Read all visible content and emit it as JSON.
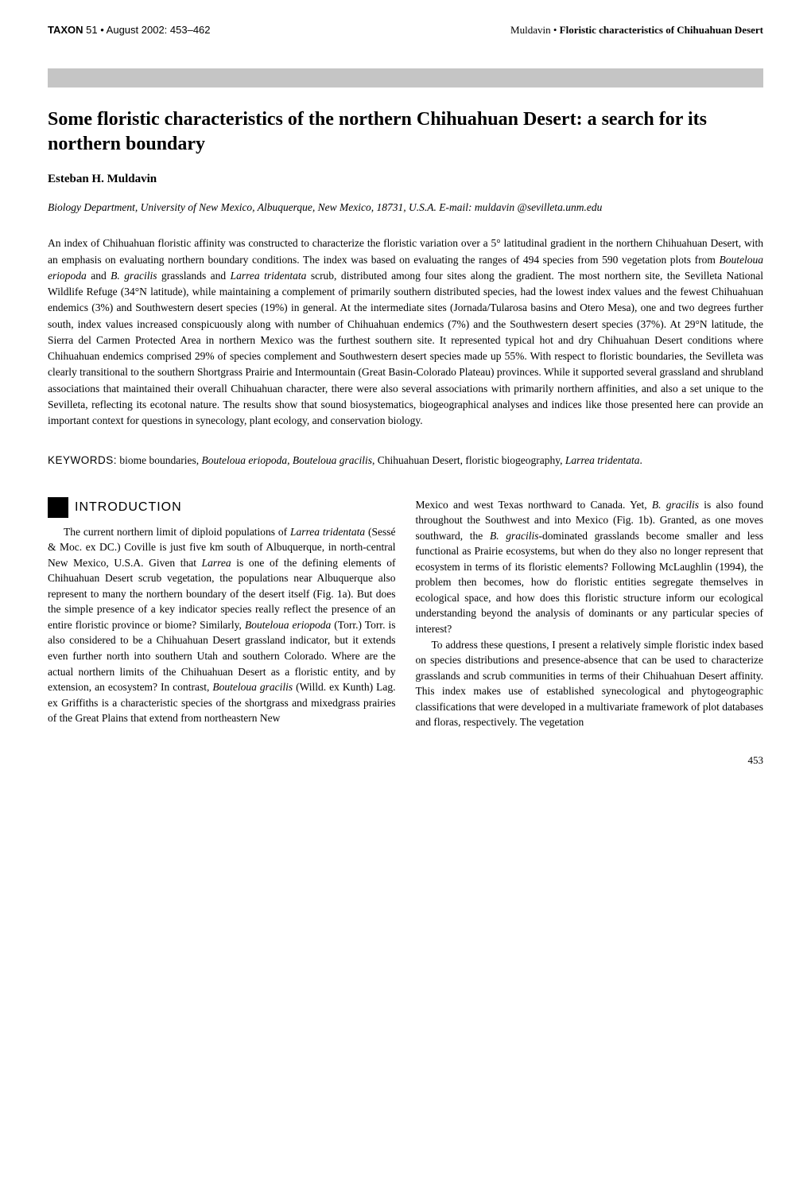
{
  "header": {
    "journal": "TAXON",
    "issue_info": " 51 • August 2002: 453–462",
    "author_short": "Muldavin • ",
    "running_title": "Floristic characteristics of Chihuahuan Desert"
  },
  "article": {
    "title": "Some floristic characteristics of the northern Chihuahuan Desert: a search for its northern boundary",
    "author": "Esteban H. Muldavin",
    "affiliation": "Biology Department, University of New Mexico, Albuquerque, New Mexico, 18731, U.S.A. E-mail: muldavin @sevilleta.unm.edu",
    "abstract_p1": "An index of Chihuahuan floristic affinity was constructed to characterize the floristic variation over a 5° latitudinal gradient in the northern Chihuahuan Desert, with an emphasis on evaluating northern boundary conditions. The index was based on evaluating the ranges of 494 species from 590 vegetation plots from ",
    "abstract_i1": "Bouteloua eriopoda",
    "abstract_p2": " and ",
    "abstract_i2": "B. gracilis",
    "abstract_p3": " grasslands and ",
    "abstract_i3": "Larrea tridentata",
    "abstract_p4": " scrub, distributed among four sites along the gradient. The most northern site, the Sevilleta National Wildlife Refuge (34°N latitude), while maintaining a complement of primarily southern distributed species, had the lowest index values and the fewest Chihuahuan endemics (3%) and Southwestern desert species (19%) in general. At the intermediate sites (Jornada/Tularosa basins and Otero Mesa), one and two degrees further south, index values increased conspicuously along with number of Chihuahuan endemics (7%) and the Southwestern desert species (37%). At 29°N latitude, the Sierra del Carmen Protected Area in northern Mexico was the furthest southern site. It represented typical hot and dry Chihuahuan Desert conditions where Chihuahuan endemics comprised 29% of species complement and Southwestern desert species made up 55%. With respect to floristic boundaries, the Sevilleta was clearly transitional to the southern Shortgrass Prairie and Intermountain (Great Basin-Colorado Plateau) provinces. While it supported several grassland and shrubland associations that maintained their overall Chihuahuan character, there were also several associations with primarily northern affinities, and also a set unique to the Sevilleta, reflecting its ecotonal nature. The results show that sound biosystematics, biogeographical analyses and indices like those presented here can provide an important context for questions in synecology, plant ecology, and conservation biology.",
    "keywords_label": "KEYWORDS:",
    "keywords_p1": " biome boundaries, ",
    "keywords_i1": "Bouteloua eriopoda",
    "keywords_p2": ", ",
    "keywords_i2": "Bouteloua gracilis",
    "keywords_p3": ", Chihuahuan Desert, floristic biogeography, ",
    "keywords_i3": "Larrea tridentata",
    "keywords_p4": "."
  },
  "section": {
    "title": "INTRODUCTION"
  },
  "body": {
    "col1_p1a": "The current northern limit of diploid populations of ",
    "col1_i1": "Larrea tridentata",
    "col1_p1b": " (Sessé & Moc. ex DC.) Coville is just five km south of Albuquerque, in north-central New Mexico, U.S.A. Given that ",
    "col1_i2": "Larrea",
    "col1_p1c": " is one of the defining elements of Chihuahuan Desert scrub vegetation, the populations near Albuquerque also represent to many the northern boundary of the desert itself (Fig. 1a). But does the simple presence of a key indicator species really reflect the presence of an entire floristic province or biome? Similarly, ",
    "col1_i3": "Bouteloua eriopoda",
    "col1_p1d": " (Torr.) Torr. is also considered to be a Chihuahuan Desert grassland indicator, but it extends even further north into southern Utah and southern Colorado. Where are the actual northern limits of the Chihuahuan Desert as a floristic entity, and by extension, an ecosystem? In contrast, ",
    "col1_i4": "Bouteloua gracilis",
    "col1_p1e": " (Willd. ex Kunth) Lag. ex Griffiths is a characteristic species of the shortgrass and mixedgrass prairies of the Great Plains that extend from northeastern New",
    "col2_p1a": "Mexico and west Texas northward to Canada. Yet, ",
    "col2_i1": "B. gracilis",
    "col2_p1b": " is also found throughout the Southwest and into Mexico (Fig. 1b). Granted, as one moves southward, the ",
    "col2_i2": "B. gracilis",
    "col2_p1c": "-dominated grasslands become smaller and less functional as Prairie ecosystems, but when do they also no longer represent that ecosystem in terms of its floristic elements? Following McLaughlin (1994), the problem then becomes, how do floristic entities segregate themselves in ecological space, and how does this floristic structure inform our ecological understanding beyond the analysis of dominants or any particular species of interest?",
    "col2_p2": "To address these questions, I present a relatively simple floristic index based on species distributions and presence-absence that can be used to characterize grasslands and scrub communities in terms of their Chihuahuan Desert affinity. This index makes use of established synecological and phytogeographic classifications that were developed in a multivariate framework of plot databases and floras, respectively. The vegetation"
  },
  "page_number": "453"
}
